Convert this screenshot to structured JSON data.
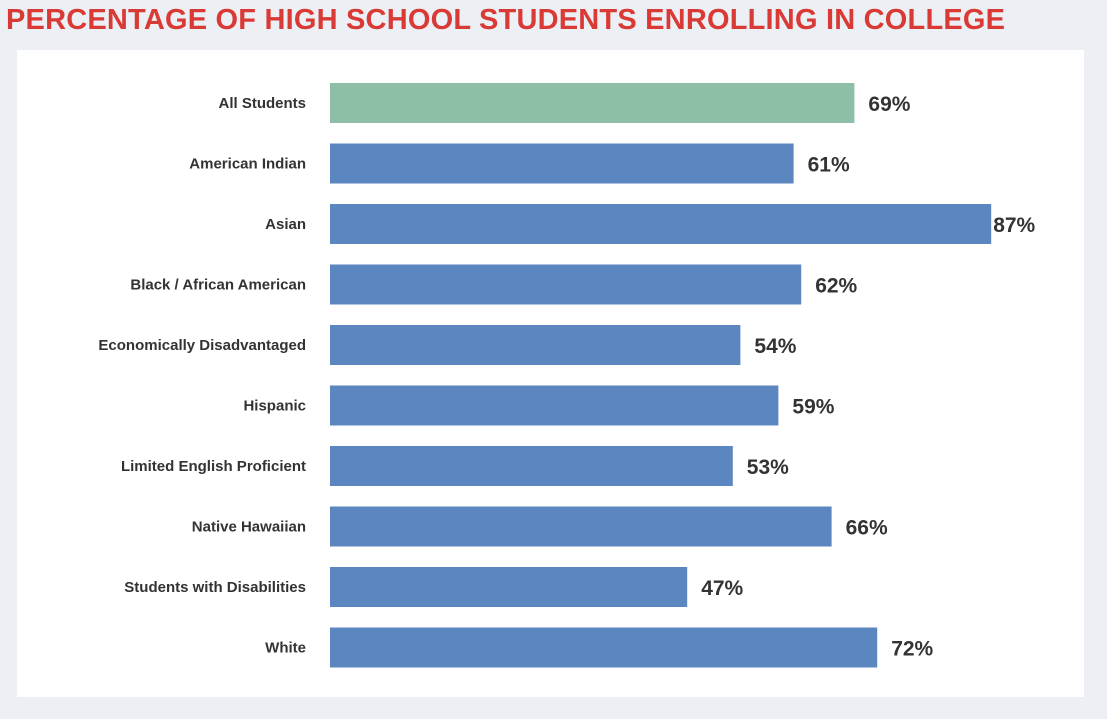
{
  "chart_data": {
    "type": "bar",
    "orientation": "horizontal",
    "title": "PERCENTAGE OF HIGH SCHOOL STUDENTS ENROLLING IN COLLEGE",
    "categories": [
      "All Students",
      "American Indian",
      "Asian",
      "Black / African American",
      "Economically Disadvantaged",
      "Hispanic",
      "Limited English Proficient",
      "Native Hawaiian",
      "Students with Disabilities",
      "White"
    ],
    "values": [
      69,
      61,
      87,
      62,
      54,
      59,
      53,
      66,
      47,
      72
    ],
    "value_labels": [
      "69%",
      "61%",
      "87%",
      "62%",
      "54%",
      "59%",
      "53%",
      "66%",
      "47%",
      "72%"
    ],
    "unit": "%",
    "xlim": [
      0,
      100
    ],
    "grid": false,
    "legend": "none",
    "colors": {
      "highlight": "#8dbfa6",
      "bar": "#5b86c0",
      "title": "#d93a35",
      "text": "#333333",
      "background": "#ecf0f4",
      "panel": "#ffffff"
    }
  }
}
